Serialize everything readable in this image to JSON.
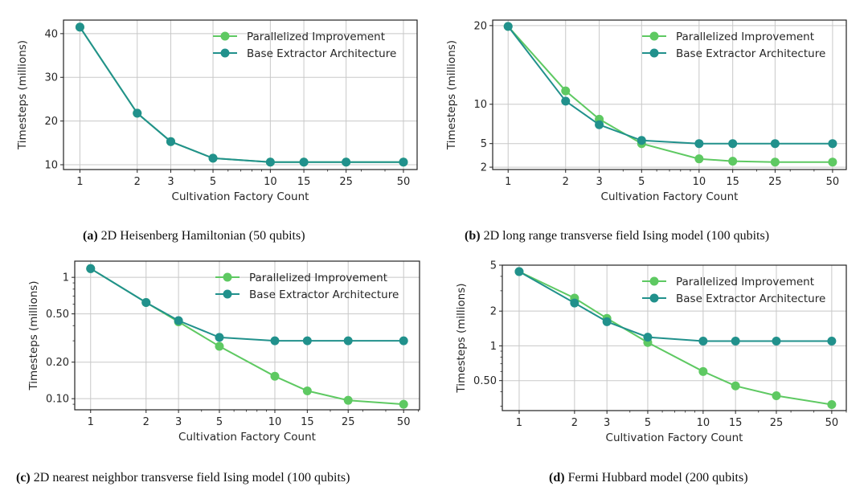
{
  "colors": {
    "parallelized": "#5ec962",
    "base": "#21918c",
    "grid": "#c8c8c8",
    "frame": "#222222"
  },
  "chart_data": [
    {
      "id": "a",
      "type": "line",
      "caption_label": "(a)",
      "caption_text": "2D Heisenberg Hamiltonian (50 qubits)",
      "xlabel": "Cultivation Factory Count",
      "ylabel": "Timesteps (millions)",
      "xscale": "log",
      "yscale": "linear",
      "x": [
        1,
        2,
        3,
        5,
        10,
        15,
        25,
        50
      ],
      "xticks": [
        "1",
        "2",
        "3",
        "5",
        "10",
        "15",
        "25",
        "50"
      ],
      "yticks": [
        10,
        20,
        30,
        40
      ],
      "ytick_labels": [
        "10",
        "20",
        "30",
        "40"
      ],
      "xlim": [
        0.82,
        59
      ],
      "ylim": [
        8.9,
        43.1
      ],
      "grid": true,
      "legend_position": "top-right",
      "series": [
        {
          "name": "Parallelized Improvement",
          "color_key": "parallelized",
          "values": [
            41.5,
            21.8,
            15.3,
            11.5,
            10.6,
            10.6,
            10.6,
            10.6
          ]
        },
        {
          "name": "Base Extractor Architecture",
          "color_key": "base",
          "values": [
            41.5,
            21.8,
            15.3,
            11.5,
            10.6,
            10.6,
            10.6,
            10.6
          ]
        }
      ]
    },
    {
      "id": "b",
      "type": "line",
      "caption_label": "(b)",
      "caption_text": "2D long range transverse field Ising model (100 qubits)",
      "xlabel": "Cultivation Factory Count",
      "ylabel": "Timesteps (millions)",
      "xscale": "log",
      "yscale": "linear",
      "x": [
        1,
        2,
        3,
        5,
        10,
        15,
        25,
        50
      ],
      "xticks": [
        "1",
        "2",
        "3",
        "5",
        "10",
        "15",
        "25",
        "50"
      ],
      "yticks": [
        2,
        5,
        10,
        20
      ],
      "ytick_labels": [
        "2",
        "5",
        "10",
        "20"
      ],
      "xlim": [
        0.83,
        59
      ],
      "ylim": [
        1.7,
        20.7
      ],
      "grid": true,
      "legend_position": "top-right",
      "series": [
        {
          "name": "Parallelized Improvement",
          "color_key": "parallelized",
          "values": [
            19.9,
            11.7,
            8.1,
            5.0,
            3.06,
            2.76,
            2.65,
            2.65
          ]
        },
        {
          "name": "Base Extractor Architecture",
          "color_key": "base",
          "values": [
            19.9,
            10.4,
            7.4,
            5.4,
            5.0,
            5.0,
            5.0,
            5.0
          ]
        }
      ]
    },
    {
      "id": "c",
      "type": "line",
      "caption_label": "(c)",
      "caption_text": "2D nearest neighbor transverse field Ising model (100 qubits)",
      "xlabel": "Cultivation Factory Count",
      "ylabel": "Timesteps (millions)",
      "xscale": "log",
      "yscale": "log",
      "x": [
        1,
        2,
        3,
        5,
        10,
        15,
        25,
        50
      ],
      "xticks": [
        "1",
        "2",
        "3",
        "5",
        "10",
        "15",
        "25",
        "50"
      ],
      "yticks": [
        0.1,
        0.2,
        0.5,
        1
      ],
      "ytick_labels": [
        "0.10",
        "0.20",
        "0.50",
        "1"
      ],
      "xlim": [
        0.82,
        61
      ],
      "ylim": [
        0.081,
        1.36
      ],
      "grid": true,
      "legend_position": "top-right",
      "series": [
        {
          "name": "Parallelized Improvement",
          "color_key": "parallelized",
          "values": [
            1.18,
            0.62,
            0.43,
            0.27,
            0.153,
            0.116,
            0.097,
            0.09
          ]
        },
        {
          "name": "Base Extractor Architecture",
          "color_key": "base",
          "values": [
            1.18,
            0.62,
            0.44,
            0.32,
            0.3,
            0.3,
            0.3,
            0.3
          ]
        }
      ]
    },
    {
      "id": "d",
      "type": "line",
      "caption_label": "(d)",
      "caption_text": "Fermi Hubbard model (200 qubits)",
      "xlabel": "Cultivation Factory Count",
      "ylabel": "Timesteps (millions)",
      "xscale": "log",
      "yscale": "log",
      "x": [
        1,
        2,
        3,
        5,
        10,
        15,
        25,
        50
      ],
      "xticks": [
        "1",
        "2",
        "3",
        "5",
        "10",
        "15",
        "25",
        "50"
      ],
      "yticks": [
        0.5,
        1,
        2,
        5
      ],
      "ytick_labels": [
        "0.50",
        "1",
        "2",
        "5"
      ],
      "xlim": [
        0.81,
        60
      ],
      "ylim": [
        0.275,
        5
      ],
      "grid": true,
      "legend_position": "top-right",
      "series": [
        {
          "name": "Parallelized Improvement",
          "color_key": "parallelized",
          "values": [
            4.4,
            2.59,
            1.73,
            1.07,
            0.6,
            0.45,
            0.37,
            0.31
          ]
        },
        {
          "name": "Base Extractor Architecture",
          "color_key": "base",
          "values": [
            4.4,
            2.35,
            1.62,
            1.19,
            1.1,
            1.1,
            1.1,
            1.1
          ]
        }
      ]
    }
  ]
}
